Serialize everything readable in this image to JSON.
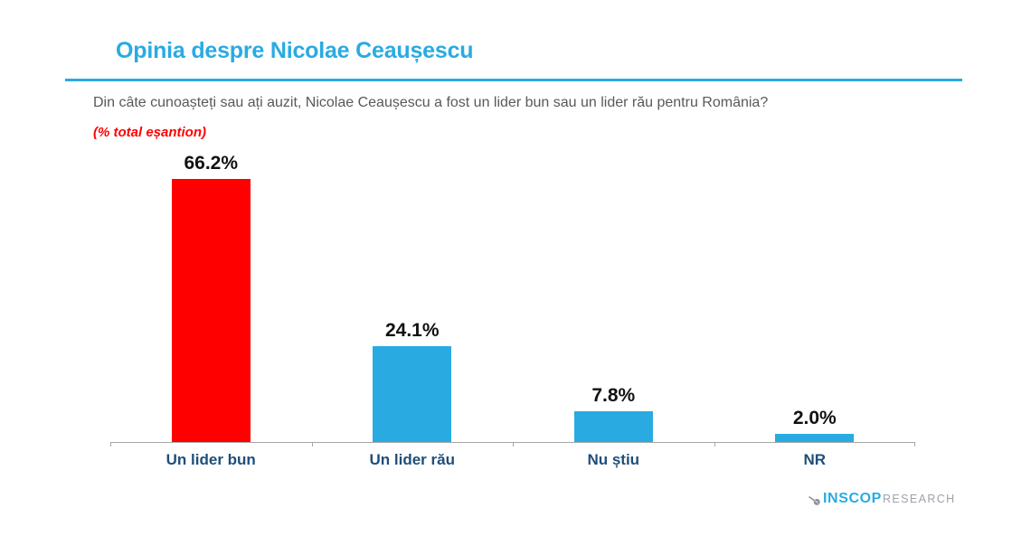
{
  "page": {
    "title": "Opinia despre Nicolae Ceaușescu",
    "subtitle": "Din câte cunoașteți sau ați auzit, Nicolae Ceaușescu a fost un lider bun sau un lider rău pentru România?",
    "note": "(% total eșantion)"
  },
  "chart_data": {
    "type": "bar",
    "title": "Opinia despre Nicolae Ceaușescu",
    "categories": [
      "Un lider bun",
      "Un lider rău",
      "Nu știu",
      "NR"
    ],
    "values": [
      66.2,
      24.1,
      7.8,
      2.0
    ],
    "value_labels": [
      "66.2%",
      "24.1%",
      "7.8%",
      "2.0%"
    ],
    "bar_colors": [
      "#fe0000",
      "#29abe2",
      "#29abe2",
      "#29abe2"
    ],
    "xlabel": "",
    "ylabel": "% total eșantion",
    "ylim": [
      0,
      70
    ],
    "grid": false,
    "legend": "none",
    "axis_color": "#a6a6a6",
    "value_label_color": "#111111",
    "category_label_color": "#1f4e79"
  },
  "branding": {
    "logo_primary": "INSCOP",
    "logo_secondary": "RESEARCH",
    "logo_icon": "pin-icon",
    "logo_primary_color": "#29abe2",
    "logo_secondary_color": "#9da2a8"
  },
  "colors": {
    "accent_blue": "#29abe2",
    "bar_red": "#fe0000",
    "note_red": "#ff0000",
    "subtitle_gray": "#595959"
  }
}
